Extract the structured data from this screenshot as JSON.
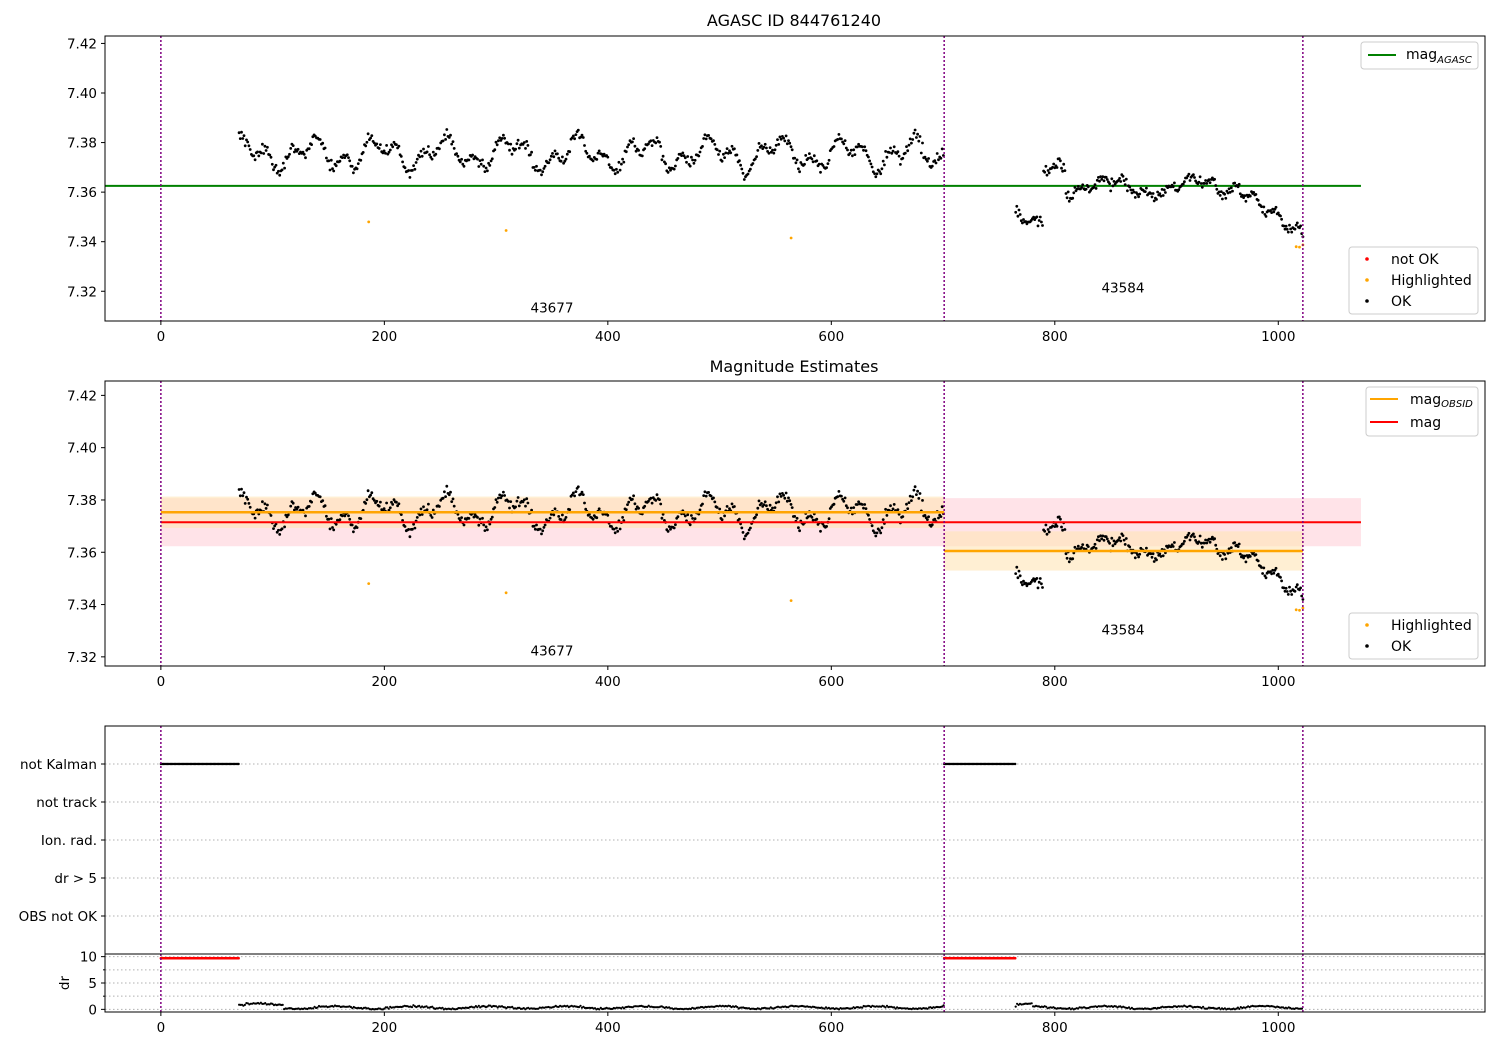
{
  "colors": {
    "ok": "#000000",
    "not_ok": "#ff0000",
    "highlighted": "#ffa500",
    "agasc_line": "#008000",
    "mag_line": "#ff0000",
    "mag_band": "#ffc0cb",
    "obsid_line": "#ffa500",
    "obsid_band": "#ffe4b5",
    "obs_marker": "#800080"
  },
  "chart_data": [
    {
      "type": "scatter",
      "title": "AGASC ID 844761240",
      "xlim": [
        -50,
        1185
      ],
      "ylim": [
        7.308,
        7.423
      ],
      "xticks": [
        0,
        200,
        400,
        600,
        800,
        1000
      ],
      "yticks": [
        7.32,
        7.34,
        7.36,
        7.38,
        7.4,
        7.42
      ],
      "ytick_labels": [
        "7.32",
        "7.34",
        "7.36",
        "7.38",
        "7.40",
        "7.42"
      ],
      "obs_boundaries": [
        0,
        701,
        1022
      ],
      "obsid_labels": [
        {
          "text": "43677",
          "x": 350,
          "y": 7.3115
        },
        {
          "text": "43584",
          "x": 861,
          "y": 7.3195
        }
      ],
      "mag_agasc": {
        "value": 7.3625,
        "x_range": [
          -50,
          1074
        ]
      },
      "highlighted_points": [
        [
          186,
          7.348
        ],
        [
          309,
          7.3445
        ],
        [
          564,
          7.3415
        ],
        [
          1016,
          7.338
        ],
        [
          1019,
          7.3378
        ],
        [
          1022,
          7.3387
        ]
      ],
      "legend_top": {
        "entries": [
          {
            "label": "mag",
            "sub": "AGASC"
          }
        ]
      },
      "legend_bottom": {
        "entries": [
          {
            "label": "not OK"
          },
          {
            "label": "Highlighted"
          },
          {
            "label": "OK"
          }
        ]
      }
    },
    {
      "type": "scatter",
      "title": "Magnitude Estimates",
      "xlim": [
        -50,
        1185
      ],
      "ylim": [
        7.3165,
        7.4255
      ],
      "xticks": [
        0,
        200,
        400,
        600,
        800,
        1000
      ],
      "yticks": [
        7.32,
        7.34,
        7.36,
        7.38,
        7.4,
        7.42
      ],
      "ytick_labels": [
        "7.32",
        "7.34",
        "7.36",
        "7.38",
        "7.40",
        "7.42"
      ],
      "obs_boundaries": [
        0,
        701,
        1022
      ],
      "obsid_labels": [
        {
          "text": "43677",
          "x": 350,
          "y": 7.3205
        },
        {
          "text": "43584",
          "x": 861,
          "y": 7.3285
        }
      ],
      "mag": {
        "value": 7.3715,
        "band": [
          7.3623,
          7.3807
        ],
        "x_range": [
          0,
          1074
        ]
      },
      "mag_obsid": [
        {
          "value": 7.3753,
          "band": [
            7.3693,
            7.3813
          ],
          "x_range": [
            0,
            701
          ]
        },
        {
          "value": 7.3605,
          "band": [
            7.353,
            7.368
          ],
          "x_range": [
            701,
            1022
          ]
        }
      ],
      "highlighted_points": [
        [
          186,
          7.348
        ],
        [
          309,
          7.3445
        ],
        [
          564,
          7.3415
        ],
        [
          1016,
          7.338
        ],
        [
          1019,
          7.3378
        ],
        [
          1022,
          7.3387
        ]
      ],
      "legend_top": {
        "entries": [
          {
            "label": "mag",
            "sub": "OBSID"
          },
          {
            "label": "mag"
          }
        ]
      },
      "legend_bottom": {
        "entries": [
          {
            "label": "Highlighted"
          },
          {
            "label": "OK"
          }
        ]
      }
    },
    {
      "type": "scatter",
      "title": "",
      "xlim": [
        -50,
        1185
      ],
      "flag_labels": [
        "not Kalman",
        "not track",
        "Ion. rad.",
        "dr > 5",
        "OBS not OK"
      ],
      "flag_segments": [
        {
          "flag": "not Kalman",
          "x_range": [
            0,
            70
          ]
        },
        {
          "flag": "not Kalman",
          "x_range": [
            701,
            765
          ]
        }
      ],
      "obs_boundaries": [
        0,
        701,
        1022
      ]
    },
    {
      "type": "scatter",
      "title": "",
      "xlim": [
        -50,
        1185
      ],
      "ylim": [
        -0.5,
        10.5
      ],
      "xticks": [
        0,
        200,
        400,
        600,
        800,
        1000
      ],
      "yticks": [
        0,
        5,
        10
      ],
      "ytick_labels": [
        "0",
        "5",
        "10"
      ],
      "ylabel": "dr",
      "dr_high_segments": [
        {
          "x_range": [
            0,
            70
          ],
          "value": 9.7
        },
        {
          "x_range": [
            701,
            765
          ],
          "value": 9.7
        }
      ],
      "obs_boundaries": [
        0,
        701,
        1022
      ]
    }
  ]
}
